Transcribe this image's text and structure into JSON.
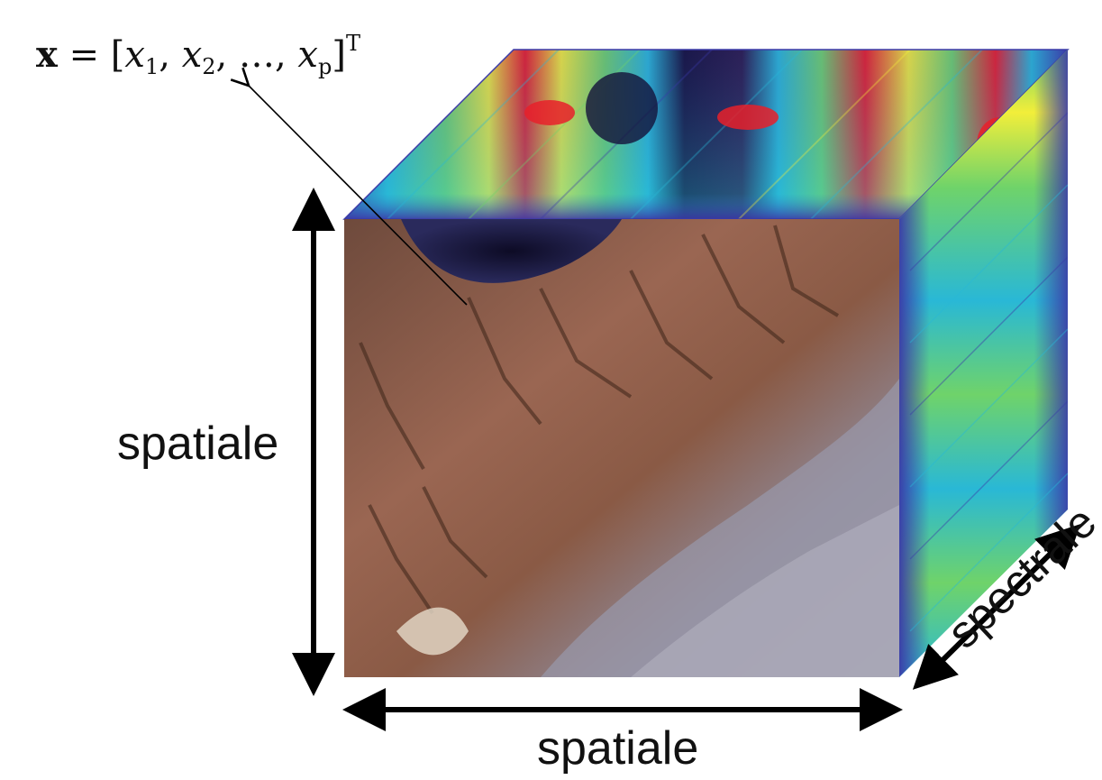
{
  "formula": {
    "vector": "x",
    "equals": " = [",
    "parts": [
      {
        "var": "x",
        "sub": "1",
        "sep": ", "
      },
      {
        "var": "x",
        "sub": "2",
        "sep": ", …, "
      },
      {
        "var": "x",
        "sub": "p",
        "sep": ""
      }
    ],
    "close": "]",
    "sup": "T"
  },
  "labels": {
    "spatial_vertical": "spatiale",
    "spatial_horizontal": "spatiale",
    "spectral": "spectrale"
  },
  "colors": {
    "arrow": "#000000",
    "text": "#111111",
    "spectral_low": "#3b3aa8",
    "spectral_mid_low": "#29b8d6",
    "spectral_mid": "#6fd36a",
    "spectral_high": "#f2ee3a",
    "spectral_peak": "#e8202a",
    "water": "#1c1838",
    "terrain": "#8a5a45",
    "urban": "#8f8fa0"
  }
}
